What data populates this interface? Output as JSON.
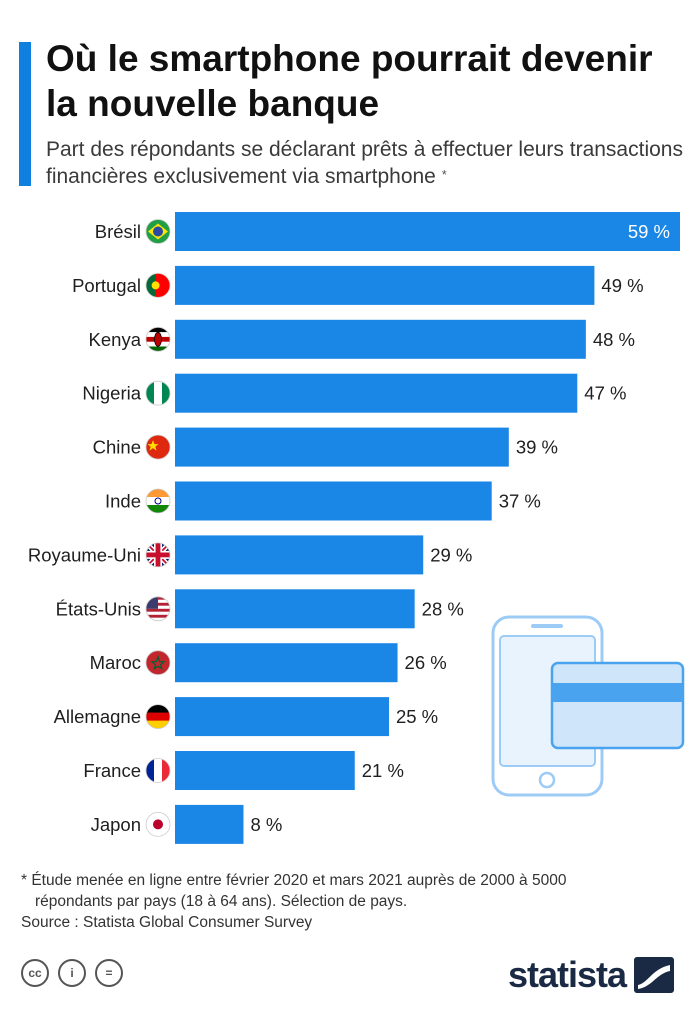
{
  "header": {
    "title": "Où le smartphone pourrait devenir la nouvelle banque",
    "subtitle": "Part des répondants se déclarant prêts à effectuer leurs transactions financières exclusivement via smartphone",
    "subtitle_marker": "*"
  },
  "colors": {
    "accent": "#0f7fe0",
    "bar": "#1a86e6",
    "illustration": "#9ccbf5"
  },
  "chart_data": {
    "type": "bar",
    "orientation": "horizontal",
    "categories": [
      "Brésil",
      "Portugal",
      "Kenya",
      "Nigeria",
      "Chine",
      "Inde",
      "Royaume-Uni",
      "États-Unis",
      "Maroc",
      "Allemagne",
      "France",
      "Japon"
    ],
    "values": [
      59,
      49,
      48,
      47,
      39,
      37,
      29,
      28,
      26,
      25,
      21,
      8
    ],
    "value_labels": [
      "59 %",
      "49 %",
      "48 %",
      "47 %",
      "39 %",
      "37 %",
      "29 %",
      "28 %",
      "26 %",
      "25 %",
      "21 %",
      "8 %"
    ],
    "flags": [
      "brazil-flag-icon",
      "portugal-flag-icon",
      "kenya-flag-icon",
      "nigeria-flag-icon",
      "china-flag-icon",
      "india-flag-icon",
      "uk-flag-icon",
      "usa-flag-icon",
      "morocco-flag-icon",
      "germany-flag-icon",
      "france-flag-icon",
      "japan-flag-icon"
    ],
    "xlim": [
      0,
      59
    ],
    "grid": false,
    "legend": "none",
    "unit": "%"
  },
  "footer": {
    "note_line1": "* Étude menée en ligne entre février 2020 et mars 2021 auprès de 2000 à 5000",
    "note_line2": "répondants par pays (18 à 64 ans). Sélection de pays.",
    "source": "Source : Statista Global Consumer Survey",
    "license_icons": [
      "cc",
      "i",
      "="
    ],
    "brand": "statista"
  }
}
